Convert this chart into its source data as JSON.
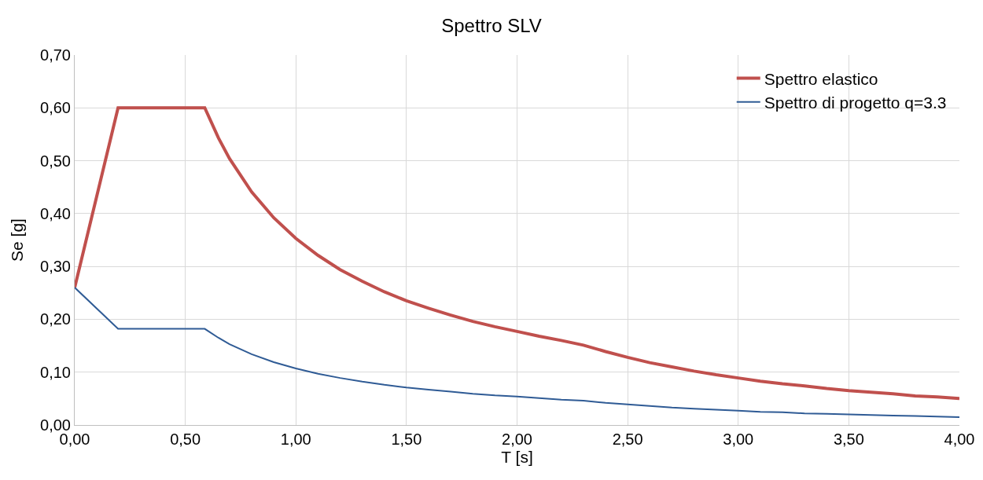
{
  "chart_data": {
    "type": "line",
    "title": "Spettro SLV",
    "xlabel": "T [s]",
    "ylabel": "Se [g]",
    "x": [
      0,
      0.196,
      0.588,
      0.65,
      0.7,
      0.8,
      0.9,
      1.0,
      1.1,
      1.2,
      1.3,
      1.4,
      1.5,
      1.6,
      1.7,
      1.8,
      1.9,
      2.0,
      2.1,
      2.2,
      2.3,
      2.4,
      2.5,
      2.6,
      2.7,
      2.8,
      2.9,
      3.0,
      3.1,
      3.2,
      3.3,
      3.4,
      3.5,
      3.6,
      3.7,
      3.8,
      3.9,
      4.0
    ],
    "series": [
      {
        "name": "Spettro elastico",
        "color": "#c0504d",
        "values": [
          0.26,
          0.6,
          0.6,
          0.543,
          0.504,
          0.441,
          0.392,
          0.353,
          0.321,
          0.294,
          0.272,
          0.252,
          0.235,
          0.221,
          0.208,
          0.196,
          0.186,
          0.177,
          0.168,
          0.16,
          0.151,
          0.139,
          0.128,
          0.118,
          0.11,
          0.102,
          0.095,
          0.089,
          0.083,
          0.078,
          0.074,
          0.069,
          0.065,
          0.062,
          0.059,
          0.055,
          0.053,
          0.05
        ]
      },
      {
        "name": "Spettro di progetto q=3.3",
        "color": "#2f5b95",
        "values": [
          0.26,
          0.182,
          0.182,
          0.165,
          0.153,
          0.134,
          0.119,
          0.107,
          0.097,
          0.089,
          0.082,
          0.076,
          0.071,
          0.067,
          0.063,
          0.059,
          0.056,
          0.054,
          0.051,
          0.048,
          0.046,
          0.042,
          0.039,
          0.036,
          0.033,
          0.031,
          0.029,
          0.027,
          0.025,
          0.024,
          0.022,
          0.021,
          0.02,
          0.019,
          0.018,
          0.017,
          0.016,
          0.015
        ]
      }
    ],
    "xlim": [
      0,
      4
    ],
    "xticks": [
      {
        "value": 0,
        "label": "0,00"
      },
      {
        "value": 0.5,
        "label": "0,50"
      },
      {
        "value": 1,
        "label": "1,00"
      },
      {
        "value": 1.5,
        "label": "1,50"
      },
      {
        "value": 2,
        "label": "2,00"
      },
      {
        "value": 2.5,
        "label": "2,50"
      },
      {
        "value": 3,
        "label": "3,00"
      },
      {
        "value": 3.5,
        "label": "3,50"
      },
      {
        "value": 4,
        "label": "4,00"
      }
    ],
    "ylim": [
      0,
      0.7
    ],
    "yticks": [
      {
        "value": 0,
        "label": "0,00"
      },
      {
        "value": 0.1,
        "label": "0,10"
      },
      {
        "value": 0.2,
        "label": "0,20"
      },
      {
        "value": 0.3,
        "label": "0,30"
      },
      {
        "value": 0.4,
        "label": "0,40"
      },
      {
        "value": 0.5,
        "label": "0,50"
      },
      {
        "value": 0.6,
        "label": "0,60"
      },
      {
        "value": 0.7,
        "label": "0,70"
      }
    ],
    "grid": true,
    "legend": "top right",
    "marker": "none",
    "line_style": "solid"
  }
}
